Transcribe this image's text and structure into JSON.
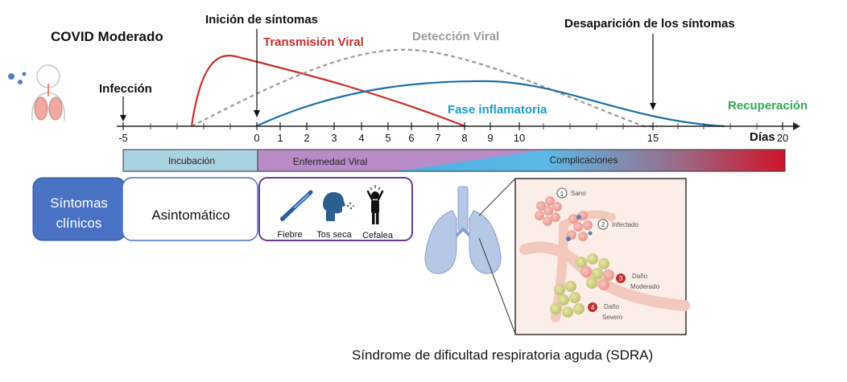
{
  "title": "COVID Moderado",
  "labels": {
    "infeccion": "Infección",
    "inicio_sintomas": "Inición de síntomas",
    "transmision": "Transmisión Viral",
    "deteccion": "Detección Viral",
    "desaparicion": "Desaparición de los síntomas",
    "fase_inflamatoria": "Fase inflamatoria",
    "recuperacion": "Recuperación",
    "dias": "Días"
  },
  "axis_ticks": [
    "-5",
    "0",
    "1",
    "2",
    "3",
    "4",
    "5",
    "6",
    "7",
    "8",
    "9",
    "10",
    "15",
    "20"
  ],
  "phases": {
    "incubacion": "Incubación",
    "enfermedad_viral": "Enfermedad Viral",
    "complicaciones": "Complicaciones"
  },
  "sintomas_box": {
    "header": [
      "Síntomas",
      "clínicos"
    ],
    "asintomatico": "Asintomático",
    "items": [
      "Fiebre",
      "Tos seca",
      "Cefalea"
    ]
  },
  "sdra": {
    "caption": "Síndrome de dificultad respiratoria aguda (SDRA)",
    "stages": [
      {
        "num": "1",
        "label": "Sano"
      },
      {
        "num": "2",
        "label": "Infectado"
      },
      {
        "num": "3",
        "label": "Daño",
        "label2": "Moderado"
      },
      {
        "num": "4",
        "label": "Daño",
        "label2": "Severo"
      }
    ]
  },
  "colors": {
    "transmision": "#c8302f",
    "deteccion": "#9a9a9a",
    "inflamatoria": "#1d6fa5",
    "fase_text": "#1a9fc9",
    "recuperacion": "#34a853",
    "incubacion": "#a9d3e0",
    "enfermedad": "#b98cc8",
    "sintomas_header": "#4a72c4",
    "sintomas_border": "#6a3a93"
  }
}
